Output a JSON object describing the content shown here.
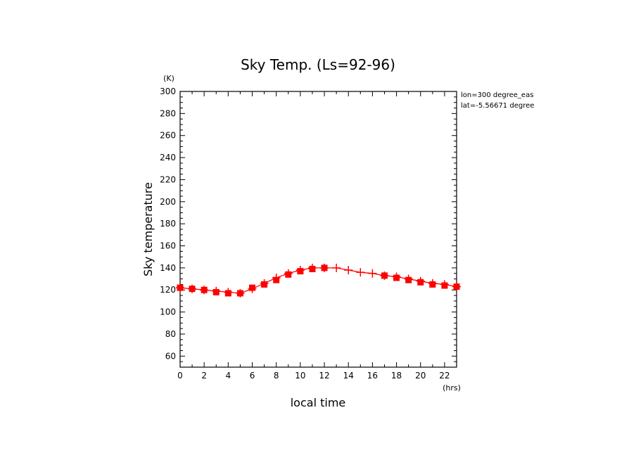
{
  "chart_data": {
    "type": "line",
    "title": "Sky Temp. (Ls=92-96)",
    "xlabel": "local time",
    "ylabel": "Sky temperature",
    "x_unit": "(hrs)",
    "y_unit": "(K)",
    "xlim": [
      0,
      23
    ],
    "ylim": [
      50,
      300
    ],
    "x_ticks": [
      "0",
      "2",
      "4",
      "6",
      "8",
      "10",
      "12",
      "14",
      "16",
      "18",
      "20",
      "22"
    ],
    "y_ticks": [
      "60",
      "80",
      "100",
      "120",
      "140",
      "160",
      "180",
      "200",
      "220",
      "240",
      "260",
      "280",
      "300"
    ],
    "annotations": [
      "lon=300 degree_eas",
      "lat=-5.56671 degree"
    ],
    "grid": false,
    "series": [
      {
        "marker": "cross",
        "color": "#ff0000",
        "x": [
          0,
          1,
          2,
          3,
          4,
          5,
          6,
          7,
          8,
          9,
          10,
          11,
          12,
          13,
          14,
          15,
          16,
          17,
          18,
          19,
          20,
          21,
          22,
          23
        ],
        "y": [
          122,
          121,
          120,
          119,
          118,
          117,
          121,
          126,
          131,
          135,
          138,
          140,
          140,
          140,
          138,
          136,
          135,
          133,
          132,
          130,
          128,
          126,
          125,
          123
        ]
      },
      {
        "marker": "square",
        "color": "#ff0000",
        "x": [
          0,
          1,
          2,
          3,
          4,
          5,
          6,
          7,
          8,
          9,
          10,
          11,
          12,
          17,
          18,
          19,
          20,
          21,
          22,
          23
        ],
        "y": [
          122,
          121,
          120,
          118,
          117,
          117,
          122,
          125,
          129,
          134,
          137,
          139,
          140,
          133,
          131,
          129,
          127,
          125,
          124,
          123
        ]
      }
    ]
  }
}
